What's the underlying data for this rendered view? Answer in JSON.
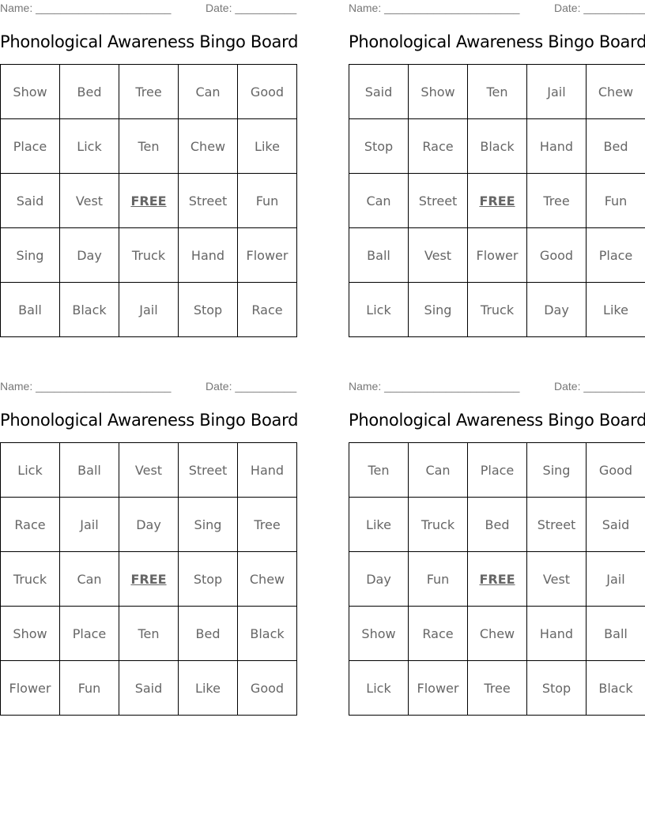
{
  "name_label": "Name: ______________________",
  "date_label": "Date: __________",
  "free_label": "FREE",
  "boards": [
    {
      "title": "Phonological Awareness Bingo Board",
      "rows": [
        [
          "Show",
          "Bed",
          "Tree",
          "Can",
          "Good"
        ],
        [
          "Place",
          "Lick",
          "Ten",
          "Chew",
          "Like"
        ],
        [
          "Said",
          "Vest",
          "FREE",
          "Street",
          "Fun"
        ],
        [
          "Sing",
          "Day",
          "Truck",
          "Hand",
          "Flower"
        ],
        [
          "Ball",
          "Black",
          "Jail",
          "Stop",
          "Race"
        ]
      ]
    },
    {
      "title": "Phonological Awareness Bingo Board",
      "rows": [
        [
          "Said",
          "Show",
          "Ten",
          "Jail",
          "Chew"
        ],
        [
          "Stop",
          "Race",
          "Black",
          "Hand",
          "Bed"
        ],
        [
          "Can",
          "Street",
          "FREE",
          "Tree",
          "Fun"
        ],
        [
          "Ball",
          "Vest",
          "Flower",
          "Good",
          "Place"
        ],
        [
          "Lick",
          "Sing",
          "Truck",
          "Day",
          "Like"
        ]
      ]
    },
    {
      "title": "Phonological Awareness Bingo Board",
      "rows": [
        [
          "Lick",
          "Ball",
          "Vest",
          "Street",
          "Hand"
        ],
        [
          "Race",
          "Jail",
          "Day",
          "Sing",
          "Tree"
        ],
        [
          "Truck",
          "Can",
          "FREE",
          "Stop",
          "Chew"
        ],
        [
          "Show",
          "Place",
          "Ten",
          "Bed",
          "Black"
        ],
        [
          "Flower",
          "Fun",
          "Said",
          "Like",
          "Good"
        ]
      ]
    },
    {
      "title": "Phonological Awareness Bingo Board",
      "rows": [
        [
          "Ten",
          "Can",
          "Place",
          "Sing",
          "Good"
        ],
        [
          "Like",
          "Truck",
          "Bed",
          "Street",
          "Said"
        ],
        [
          "Day",
          "Fun",
          "FREE",
          "Vest",
          "Jail"
        ],
        [
          "Show",
          "Race",
          "Chew",
          "Hand",
          "Ball"
        ],
        [
          "Lick",
          "Flower",
          "Tree",
          "Stop",
          "Black"
        ]
      ]
    }
  ]
}
